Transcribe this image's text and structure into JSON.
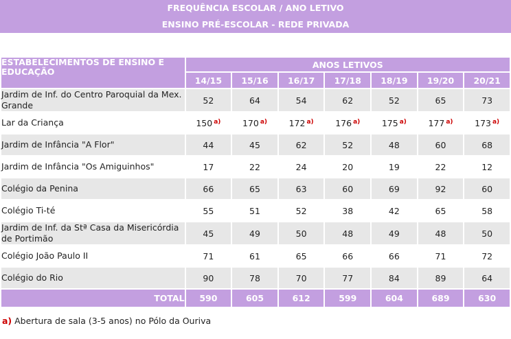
{
  "header": {
    "title": "FREQUÊNCIA ESCOLAR  / ANO LETIVO",
    "subtitle": "ENSINO PRÉ-ESCOLAR - REDE PRIVADA"
  },
  "table": {
    "col_label": "ESTABELECIMENTOS DE ENSINO E EDUCAÇÃO",
    "years_label": "ANOS LETIVOS",
    "years": [
      "14/15",
      "15/16",
      "16/17",
      "17/18",
      "18/19",
      "19/20",
      "20/21"
    ],
    "rows": [
      {
        "name": "Jardim de Inf. do Centro Paroquial da Mex. Grande",
        "values": [
          "52",
          "64",
          "54",
          "62",
          "52",
          "65",
          "73"
        ],
        "shade": true
      },
      {
        "name": "Lar da Criança",
        "values": [
          "150",
          "170",
          "172",
          "176",
          "175",
          "177",
          "173"
        ],
        "notes": [
          "a)",
          "a)",
          "a)",
          "a)",
          "a)",
          "a)",
          "a)"
        ],
        "shade": false
      },
      {
        "name": "Jardim de Infância \"A Flor\"",
        "values": [
          "44",
          "45",
          "62",
          "52",
          "48",
          "60",
          "68"
        ],
        "shade": true
      },
      {
        "name": "Jardim de Infância \"Os Amiguinhos\"",
        "values": [
          "17",
          "22",
          "24",
          "20",
          "19",
          "22",
          "12"
        ],
        "shade": false
      },
      {
        "name": "Colégio da Penina",
        "values": [
          "66",
          "65",
          "63",
          "60",
          "69",
          "92",
          "60"
        ],
        "shade": true
      },
      {
        "name": "Colégio Ti-té",
        "values": [
          "55",
          "51",
          "52",
          "38",
          "42",
          "65",
          "58"
        ],
        "shade": false
      },
      {
        "name": "Jardim de Inf. da Stª Casa da Misericórdia de Portimão",
        "values": [
          "45",
          "49",
          "50",
          "48",
          "49",
          "48",
          "50"
        ],
        "shade": true
      },
      {
        "name": "Colégio João Paulo II",
        "values": [
          "71",
          "61",
          "65",
          "66",
          "66",
          "71",
          "72"
        ],
        "shade": false
      },
      {
        "name": "Colégio do Rio",
        "values": [
          "90",
          "78",
          "70",
          "77",
          "84",
          "89",
          "64"
        ],
        "shade": true
      }
    ],
    "total_label": "TOTAL",
    "totals": [
      "590",
      "605",
      "612",
      "599",
      "604",
      "689",
      "630"
    ]
  },
  "footnote": {
    "mark": "a)",
    "text": " Abertura de sala (3-5 anos) no Pólo da Ouriva"
  },
  "colors": {
    "header_bg": "#c39fe0",
    "row_shade": "#e7e7e7",
    "note_red": "#cc0000"
  }
}
